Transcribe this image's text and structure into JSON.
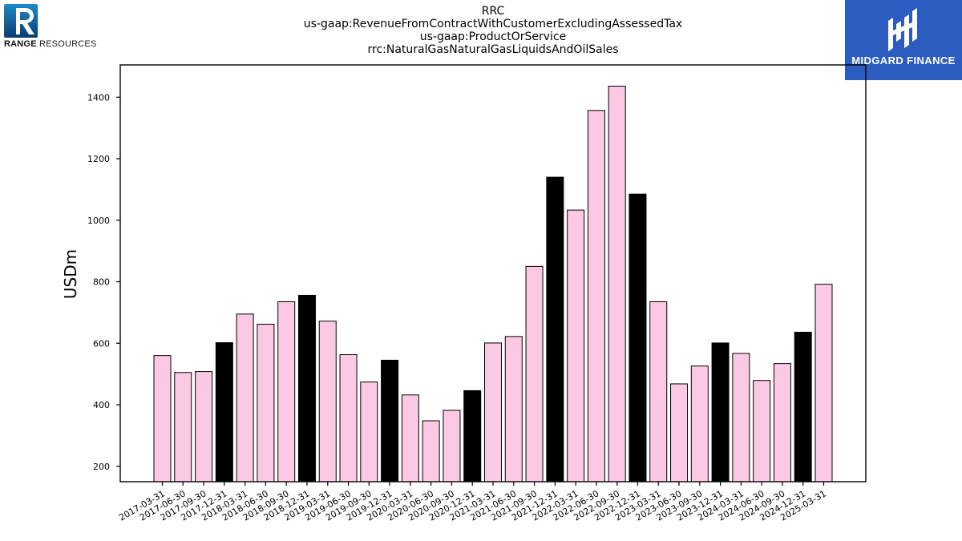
{
  "header": {
    "title_lines": [
      "RRC",
      "us-gaap:RevenueFromContractWithCustomerExcludingAssessedTax",
      "us-gaap:ProductOrService",
      "rrc:NaturalGasNaturalGasLiquidsAndOilSales"
    ]
  },
  "logos": {
    "left_bold": "RANGE",
    "left_rest": "RESOURCES",
    "right": "MIDGARD FINANCE",
    "right_bg": "#2d5cc0"
  },
  "colors": {
    "quarter_bar": "#fbc9e4",
    "year_end_bar": "#000000",
    "bar_edge": "#000000"
  },
  "chart_data": {
    "type": "bar",
    "title": "RRC us-gaap:RevenueFromContractWithCustomerExcludingAssessedTax us-gaap:ProductOrService rrc:NaturalGasNaturalGasLiquidsAndOilSales",
    "xlabel": "",
    "ylabel": "USDm",
    "ylim": [
      150,
      1505
    ],
    "yticks": [
      200,
      400,
      600,
      800,
      1000,
      1200,
      1400
    ],
    "grid": false,
    "categories": [
      "2017-03-31",
      "2017-06-30",
      "2017-09-30",
      "2017-12-31",
      "2018-03-31",
      "2018-06-30",
      "2018-09-30",
      "2018-12-31",
      "2019-03-31",
      "2019-06-30",
      "2019-09-30",
      "2019-12-31",
      "2020-03-31",
      "2020-06-30",
      "2020-09-30",
      "2020-12-31",
      "2021-03-31",
      "2021-06-30",
      "2021-09-30",
      "2021-12-31",
      "2022-03-31",
      "2022-06-30",
      "2022-09-30",
      "2022-12-31",
      "2023-03-31",
      "2023-06-30",
      "2023-09-30",
      "2023-12-31",
      "2024-03-31",
      "2024-06-30",
      "2024-09-30",
      "2024-12-31",
      "2025-03-31"
    ],
    "values": [
      560,
      505,
      508,
      602,
      695,
      662,
      735,
      756,
      672,
      563,
      474,
      545,
      432,
      348,
      382,
      446,
      601,
      622,
      850,
      1140,
      1033,
      1357,
      1436,
      1085,
      735,
      468,
      526,
      601,
      567,
      479,
      534,
      636,
      792
    ]
  }
}
